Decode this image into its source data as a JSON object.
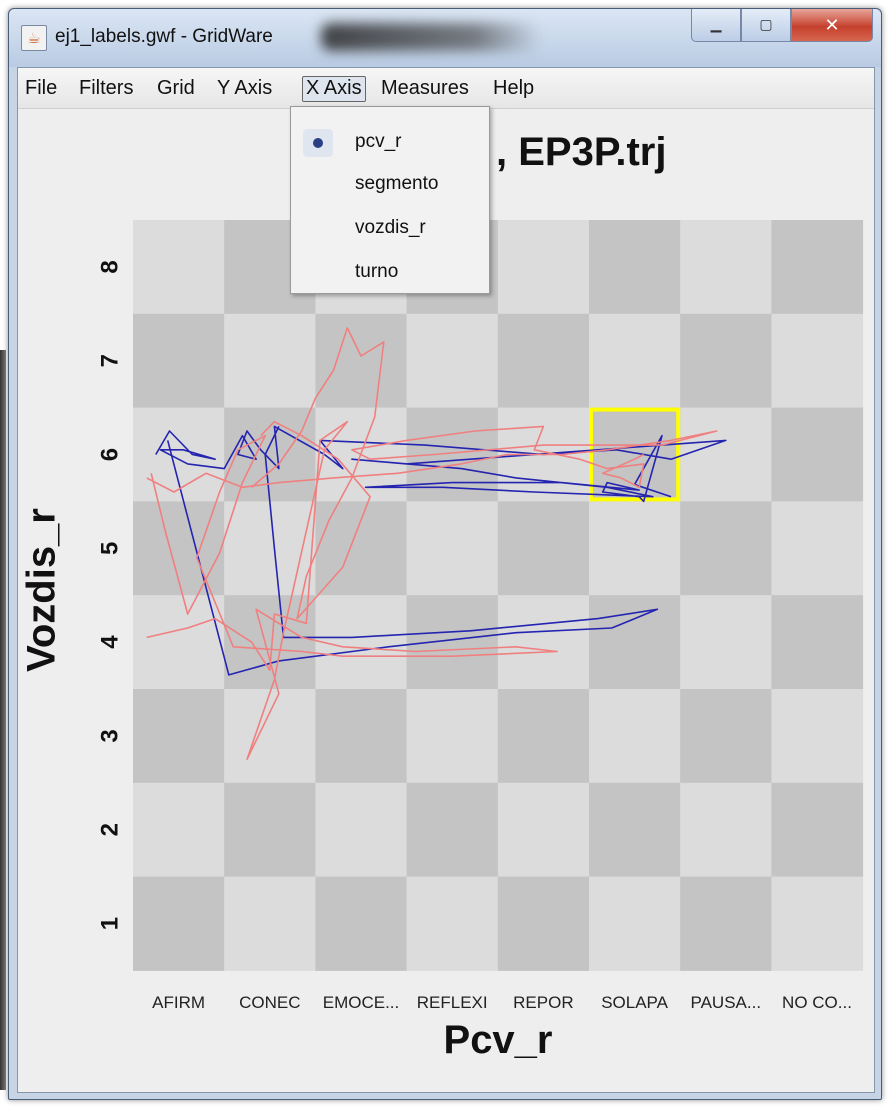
{
  "window": {
    "title": "ej1_labels.gwf - GridWare",
    "app_icon": "java-icon",
    "controls": {
      "minimize": "minimize-icon",
      "maximize": "maximize-icon",
      "close": "close-icon"
    }
  },
  "menubar": {
    "items": [
      "File",
      "Filters",
      "Grid",
      "Y Axis",
      "X Axis",
      "Measures",
      "Help"
    ],
    "active": "X Axis"
  },
  "x_axis_menu": {
    "options": [
      "pcv_r",
      "segmento",
      "vozdis_r",
      "turno"
    ],
    "selected": "pcv_r"
  },
  "chart_title_visible": ", EP3P.trj",
  "chart_data": {
    "type": "line",
    "title": ", EP3P.trj",
    "xlabel": "Pcv_r",
    "ylabel": "Vozdis_r",
    "categories": [
      "AFIRM",
      "CONEC",
      "EMOCE...",
      "REFLEXI",
      "REPOR",
      "SOLAPA",
      "PAUSA...",
      "NO CO..."
    ],
    "yticks": [
      "1",
      "2",
      "3",
      "4",
      "5",
      "6",
      "7",
      "8"
    ],
    "ylim": [
      0.5,
      8.5
    ],
    "grid": "checkerboard",
    "highlight_cell": {
      "x": "SOLAPA",
      "y": "6",
      "color": "#ffff00"
    },
    "series": [
      {
        "color": "#2424b0",
        "points": [
          [
            0.25,
            6.0
          ],
          [
            0.4,
            6.25
          ],
          [
            0.65,
            6.0
          ],
          [
            0.9,
            5.95
          ],
          [
            0.55,
            6.05
          ],
          [
            0.3,
            6.05
          ],
          [
            0.6,
            5.9
          ],
          [
            1.0,
            5.85
          ],
          [
            1.2,
            6.2
          ],
          [
            1.35,
            5.95
          ],
          [
            1.15,
            6.0
          ],
          [
            1.25,
            6.25
          ],
          [
            1.4,
            6.05
          ],
          [
            1.6,
            5.85
          ],
          [
            1.55,
            6.3
          ],
          [
            2.1,
            6.0
          ],
          [
            2.3,
            5.85
          ],
          [
            2.05,
            6.15
          ],
          [
            3.2,
            6.1
          ],
          [
            4.5,
            6.0
          ],
          [
            5.3,
            6.05
          ],
          [
            5.9,
            5.95
          ],
          [
            6.5,
            6.15
          ],
          [
            5.1,
            6.05
          ],
          [
            3.0,
            5.9
          ],
          [
            2.4,
            5.95
          ],
          [
            3.6,
            5.85
          ],
          [
            4.2,
            5.75
          ],
          [
            5.2,
            5.65
          ],
          [
            5.7,
            5.55
          ],
          [
            4.4,
            5.6
          ],
          [
            3.4,
            5.65
          ],
          [
            2.55,
            5.65
          ],
          [
            3.5,
            5.7
          ],
          [
            4.7,
            5.7
          ],
          [
            5.55,
            5.62
          ],
          [
            5.2,
            5.7
          ],
          [
            5.15,
            5.6
          ],
          [
            5.55,
            5.55
          ],
          [
            5.6,
            5.5
          ],
          [
            5.8,
            6.2
          ],
          [
            5.5,
            5.68
          ],
          [
            5.9,
            5.55
          ]
        ]
      },
      {
        "color": "#2424b0",
        "points": [
          [
            0.38,
            6.15
          ],
          [
            1.05,
            3.65
          ],
          [
            1.6,
            3.8
          ],
          [
            2.8,
            3.95
          ],
          [
            4.2,
            4.1
          ],
          [
            5.25,
            4.15
          ],
          [
            5.75,
            4.35
          ],
          [
            5.1,
            4.25
          ],
          [
            3.7,
            4.12
          ],
          [
            2.4,
            4.05
          ],
          [
            1.65,
            4.05
          ],
          [
            1.55,
            5.0
          ],
          [
            1.45,
            6.0
          ],
          [
            1.6,
            6.3
          ]
        ]
      },
      {
        "color": "#f08080",
        "points": [
          [
            0.15,
            5.75
          ],
          [
            0.45,
            5.6
          ],
          [
            0.8,
            5.8
          ],
          [
            1.2,
            5.65
          ],
          [
            1.6,
            5.7
          ],
          [
            2.2,
            5.75
          ],
          [
            2.9,
            5.8
          ],
          [
            3.6,
            5.9
          ],
          [
            4.1,
            6.0
          ],
          [
            4.7,
            6.0
          ],
          [
            5.2,
            6.05
          ],
          [
            5.9,
            6.15
          ],
          [
            6.4,
            6.25
          ],
          [
            5.8,
            6.1
          ],
          [
            4.5,
            6.1
          ],
          [
            3.3,
            6.0
          ],
          [
            2.6,
            5.95
          ],
          [
            2.4,
            6.05
          ],
          [
            3.0,
            6.15
          ],
          [
            3.75,
            6.25
          ],
          [
            4.5,
            6.3
          ],
          [
            4.4,
            6.05
          ],
          [
            4.9,
            5.95
          ],
          [
            5.2,
            5.85
          ],
          [
            5.6,
            5.9
          ],
          [
            5.55,
            5.65
          ],
          [
            5.35,
            5.75
          ],
          [
            5.15,
            5.8
          ],
          [
            5.5,
            5.95
          ],
          [
            5.6,
            6.0
          ]
        ]
      },
      {
        "color": "#f08080",
        "points": [
          [
            0.15,
            4.05
          ],
          [
            0.6,
            4.15
          ],
          [
            0.9,
            4.25
          ],
          [
            1.3,
            4.0
          ],
          [
            1.5,
            3.7
          ],
          [
            1.55,
            4.3
          ],
          [
            1.9,
            4.2
          ],
          [
            2.05,
            6.15
          ],
          [
            2.35,
            6.35
          ],
          [
            2.1,
            6.05
          ],
          [
            1.65,
            4.1
          ],
          [
            1.55,
            3.6
          ],
          [
            1.25,
            2.75
          ],
          [
            1.6,
            3.45
          ],
          [
            1.35,
            4.35
          ],
          [
            1.85,
            4.05
          ],
          [
            2.3,
            3.95
          ],
          [
            3.1,
            3.9
          ],
          [
            4.2,
            3.95
          ],
          [
            4.65,
            3.9
          ],
          [
            3.5,
            3.85
          ],
          [
            2.3,
            3.85
          ],
          [
            1.85,
            3.9
          ],
          [
            1.1,
            3.95
          ],
          [
            0.7,
            4.9
          ],
          [
            0.95,
            5.6
          ],
          [
            1.15,
            6.05
          ],
          [
            1.45,
            6.2
          ],
          [
            1.2,
            5.7
          ],
          [
            0.95,
            4.95
          ],
          [
            0.6,
            4.3
          ],
          [
            0.35,
            5.2
          ],
          [
            0.2,
            5.8
          ]
        ]
      },
      {
        "color": "#f08080",
        "points": [
          [
            1.3,
            5.65
          ],
          [
            1.6,
            5.9
          ],
          [
            1.85,
            6.25
          ],
          [
            2.0,
            6.6
          ],
          [
            2.2,
            6.9
          ],
          [
            2.35,
            7.35
          ],
          [
            2.5,
            7.05
          ],
          [
            2.75,
            7.2
          ],
          [
            2.65,
            6.4
          ],
          [
            2.4,
            5.75
          ],
          [
            2.15,
            5.3
          ],
          [
            1.9,
            4.7
          ],
          [
            1.8,
            4.25
          ],
          [
            2.3,
            4.8
          ],
          [
            2.6,
            5.55
          ],
          [
            2.25,
            5.95
          ],
          [
            1.85,
            6.2
          ],
          [
            1.55,
            6.35
          ],
          [
            1.4,
            6.2
          ]
        ]
      }
    ]
  }
}
